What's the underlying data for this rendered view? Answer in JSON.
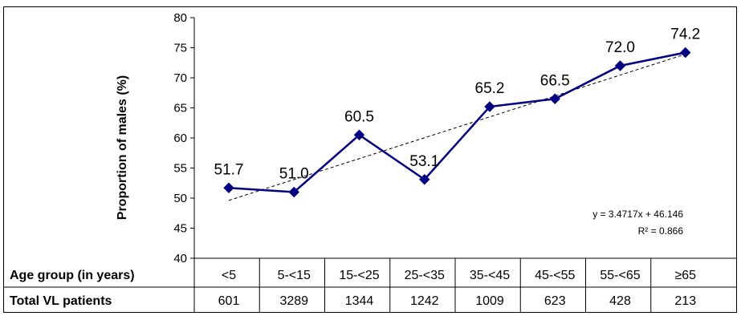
{
  "chart_data": {
    "type": "line",
    "ylabel": "Proportion of males (%)",
    "ylim": [
      40,
      80
    ],
    "yticks": [
      40,
      45,
      50,
      55,
      60,
      65,
      70,
      75,
      80
    ],
    "categories": [
      "<5",
      "5-<15",
      "15-<25",
      "25-<35",
      "35-<45",
      "45-<55",
      "55-<65",
      "≥65"
    ],
    "series": [
      {
        "values": [
          51.7,
          51.0,
          60.5,
          53.1,
          65.2,
          66.5,
          72.0,
          74.2
        ],
        "labels": [
          "51.7",
          "51.0",
          "60.5",
          "53.1",
          "65.2",
          "66.5",
          "72.0",
          "74.2"
        ],
        "color": "#000080"
      }
    ],
    "trendline": {
      "slope": 3.4717,
      "intercept": 46.146,
      "equation": "y = 3.4717x + 46.146",
      "r2": "R² = 0.866"
    },
    "grid": false
  },
  "table": {
    "row1_header": "Age group (in years)",
    "row2_header": "Total VL patients",
    "totals": [
      "601",
      "3289",
      "1344",
      "1242",
      "1009",
      "623",
      "428",
      "213"
    ]
  }
}
